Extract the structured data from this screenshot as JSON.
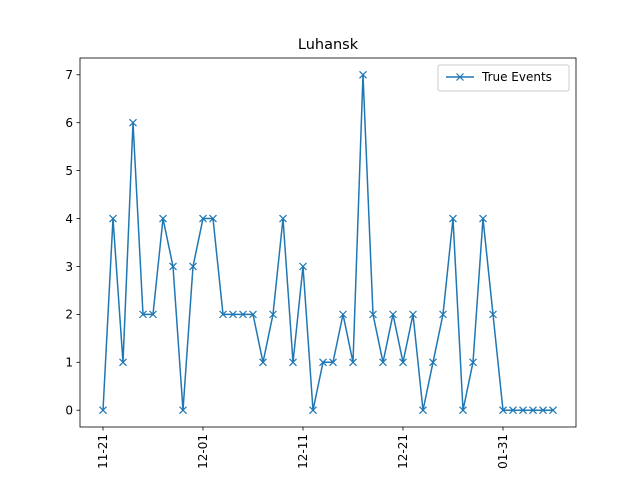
{
  "chart_data": {
    "type": "line",
    "title": "Luhansk",
    "xlabel": "",
    "ylabel": "",
    "x_tick_labels": [
      "11-21",
      "12-01",
      "12-11",
      "12-21",
      "01-31"
    ],
    "x_tick_index": [
      0,
      10,
      20,
      30,
      40
    ],
    "ylim": [
      -0.35,
      7.35
    ],
    "y_ticks": [
      0,
      1,
      2,
      3,
      4,
      5,
      6,
      7
    ],
    "legend_position": "upper-right",
    "grid": false,
    "series": [
      {
        "name": "True Events",
        "color": "#1f77b4",
        "marker": "x",
        "values": [
          0,
          4,
          1,
          6,
          2,
          2,
          4,
          3,
          0,
          3,
          4,
          4,
          2,
          2,
          2,
          2,
          1,
          2,
          4,
          1,
          3,
          0,
          1,
          1,
          2,
          1,
          7,
          2,
          1,
          2,
          1,
          2,
          0,
          1,
          2,
          4,
          0,
          1,
          4,
          2,
          0,
          0,
          0,
          0,
          0,
          0
        ]
      }
    ]
  }
}
